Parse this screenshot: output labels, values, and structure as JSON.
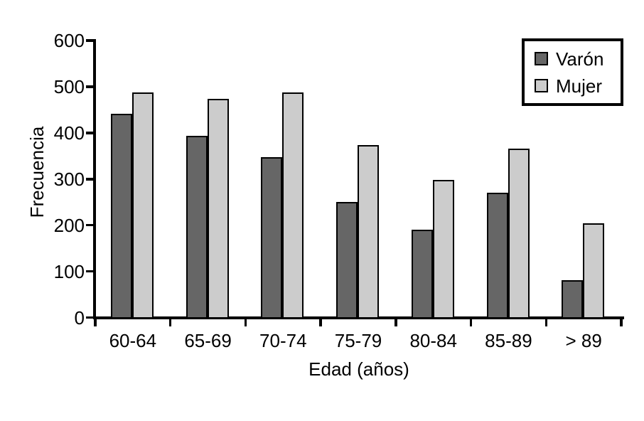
{
  "chart_data": {
    "type": "bar",
    "categories": [
      "60-64",
      "65-69",
      "70-74",
      "75-79",
      "80-84",
      "85-89",
      "> 89"
    ],
    "series": [
      {
        "key": "varon",
        "name": "Varón",
        "color": "#666666",
        "values": [
          441,
          394,
          348,
          251,
          190,
          271,
          81
        ]
      },
      {
        "key": "mujer",
        "name": "Mujer",
        "color": "#cccccc",
        "values": [
          487,
          473,
          487,
          373,
          298,
          366,
          204
        ]
      }
    ],
    "xlabel": "Edad (años)",
    "ylabel": "Frecuencia",
    "ylim": [
      0,
      600
    ],
    "yticks": [
      0,
      100,
      200,
      300,
      400,
      500,
      600
    ],
    "grid": false,
    "legend_position": "top-right",
    "bar_border_color": "#000000",
    "axis_color": "#000000",
    "background_color": "#ffffff"
  },
  "legend": {
    "items": [
      {
        "label": "Varón",
        "color": "#666666"
      },
      {
        "label": "Mujer",
        "color": "#cccccc"
      }
    ]
  }
}
